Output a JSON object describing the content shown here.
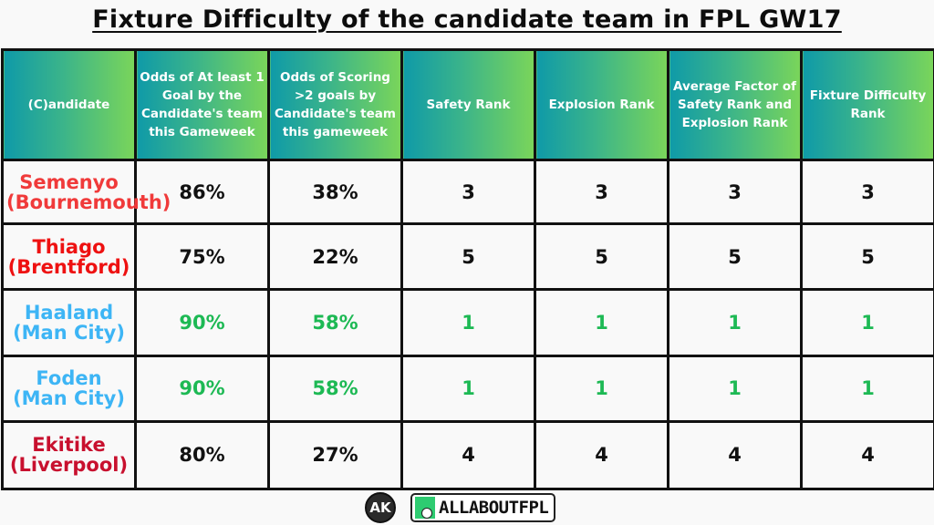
{
  "title": "Fixture Difficulty of the candidate team in FPL GW17",
  "colors": {
    "header_gradient_start": "#0f9aa8",
    "header_gradient_end": "#7ad55a",
    "best_value_green": "#1db954",
    "man_city_blue": "#3db5f5",
    "bournemouth_red": "#f03a3a",
    "brentford_red": "#ee1111",
    "liverpool_red": "#c8102e"
  },
  "table": {
    "headers": [
      "(C)andidate",
      "Odds of At least 1 Goal by the Candidate's team this Gameweek",
      "Odds of Scoring >2 goals by Candidate's team this gameweek",
      "Safety Rank",
      "Explosion Rank",
      "Average Factor of Safety Rank and Explosion Rank",
      "Fixture Difficulty Rank"
    ],
    "rows": [
      {
        "player": "Semenyo",
        "team": "(Bournemouth)",
        "name_color": "#f03a3a",
        "value_color": "#111111",
        "odds_1_goal": "86%",
        "odds_over_2": "38%",
        "safety_rank": "3",
        "explosion_rank": "3",
        "average_factor": "3",
        "fixture_difficulty_rank": "3"
      },
      {
        "player": "Thiago",
        "team": "(Brentford)",
        "name_color": "#ee1111",
        "value_color": "#111111",
        "odds_1_goal": "75%",
        "odds_over_2": "22%",
        "safety_rank": "5",
        "explosion_rank": "5",
        "average_factor": "5",
        "fixture_difficulty_rank": "5"
      },
      {
        "player": "Haaland",
        "team": "(Man City)",
        "name_color": "#3db5f5",
        "value_color": "#1db954",
        "odds_1_goal": "90%",
        "odds_over_2": "58%",
        "safety_rank": "1",
        "explosion_rank": "1",
        "average_factor": "1",
        "fixture_difficulty_rank": "1"
      },
      {
        "player": "Foden",
        "team": "(Man City)",
        "name_color": "#3db5f5",
        "value_color": "#1db954",
        "odds_1_goal": "90%",
        "odds_over_2": "58%",
        "safety_rank": "1",
        "explosion_rank": "1",
        "average_factor": "1",
        "fixture_difficulty_rank": "1"
      },
      {
        "player": "Ekitike",
        "team": "(Liverpool)",
        "name_color": "#c8102e",
        "value_color": "#111111",
        "odds_1_goal": "80%",
        "odds_over_2": "27%",
        "safety_rank": "4",
        "explosion_rank": "4",
        "average_factor": "4",
        "fixture_difficulty_rank": "4"
      }
    ]
  },
  "footer": {
    "ak_logo": "AK",
    "brand_logo": "ALLABOUTFPL",
    "brand_icon": "football-boot-icon"
  }
}
